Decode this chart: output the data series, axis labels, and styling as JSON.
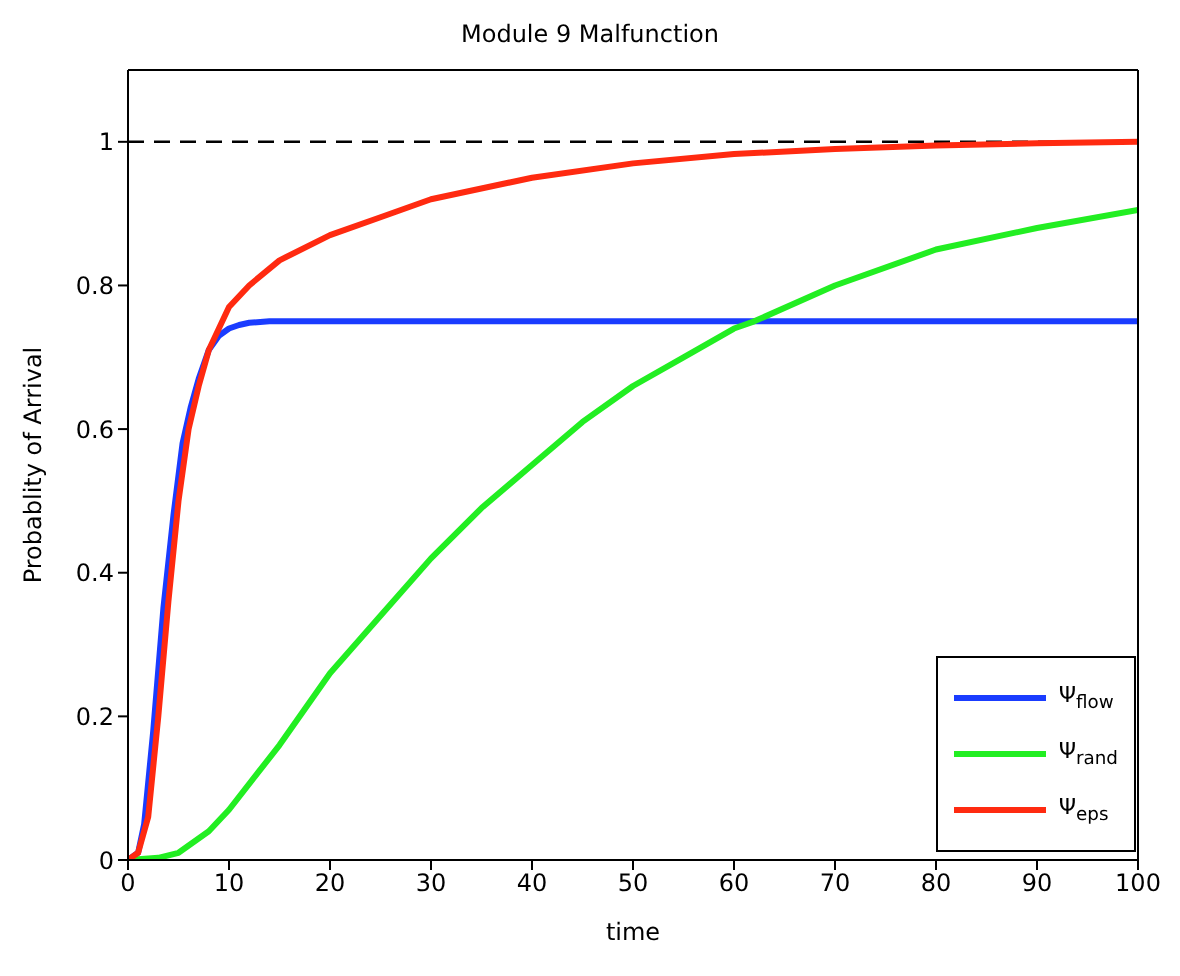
{
  "chart_data": {
    "type": "line",
    "title": "Module 9 Malfunction",
    "xlabel": "time",
    "ylabel": "Probablity of Arrival",
    "xlim": [
      0,
      100
    ],
    "xticks": [
      0,
      10,
      20,
      30,
      40,
      50,
      60,
      70,
      80,
      90,
      100
    ],
    "ylim": [
      0,
      1.1
    ],
    "yticks": [
      0,
      0.2,
      0.4,
      0.6,
      0.8,
      1
    ],
    "grid": false,
    "legend": "bottom right",
    "marker": "none",
    "line_style": "solid",
    "ref_lines": [
      {
        "axis": "y",
        "value": 1,
        "color": "#000000",
        "line_style": "dashed"
      }
    ],
    "series": [
      {
        "name": "Ψ$_{flow}$",
        "color": "#1a3cff",
        "x": [
          0,
          1,
          1.6,
          2.5,
          3.5,
          4.5,
          5.4,
          6.2,
          7,
          8,
          9,
          10,
          11,
          12,
          14,
          20,
          40,
          60,
          80,
          100
        ],
        "values": [
          0,
          0.01,
          0.05,
          0.18,
          0.35,
          0.48,
          0.58,
          0.63,
          0.67,
          0.71,
          0.73,
          0.74,
          0.745,
          0.748,
          0.75,
          0.75,
          0.75,
          0.75,
          0.75,
          0.75
        ]
      },
      {
        "name": "Ψ$_{rand}$",
        "color": "#22ee22",
        "x": [
          0,
          3,
          5,
          8,
          10,
          15,
          20,
          25,
          30,
          35,
          40,
          45,
          50,
          55,
          60,
          62,
          70,
          80,
          90,
          100
        ],
        "values": [
          0,
          0.003,
          0.01,
          0.04,
          0.07,
          0.16,
          0.26,
          0.34,
          0.42,
          0.49,
          0.55,
          0.61,
          0.66,
          0.7,
          0.74,
          0.75,
          0.8,
          0.85,
          0.88,
          0.905
        ]
      },
      {
        "name": "Ψ$_{eps}$",
        "color": "#ff2a10",
        "x": [
          0,
          1,
          2,
          3,
          4,
          5,
          6,
          7,
          8,
          9,
          10,
          12,
          15,
          20,
          25,
          30,
          40,
          50,
          60,
          70,
          80,
          90,
          100
        ],
        "values": [
          0,
          0.01,
          0.06,
          0.2,
          0.36,
          0.5,
          0.6,
          0.66,
          0.71,
          0.74,
          0.77,
          0.8,
          0.835,
          0.87,
          0.895,
          0.92,
          0.95,
          0.97,
          0.983,
          0.99,
          0.995,
          0.998,
          1
        ]
      }
    ]
  }
}
